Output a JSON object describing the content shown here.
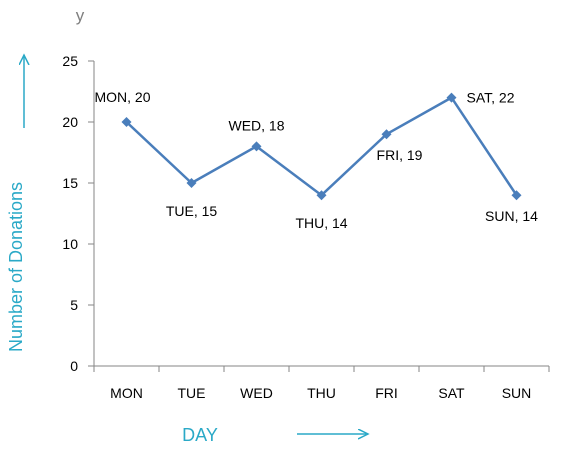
{
  "chart_data": {
    "type": "line",
    "categories": [
      "MON",
      "TUE",
      "WED",
      "THU",
      "FRI",
      "SAT",
      "SUN"
    ],
    "series": [
      {
        "values": [
          20,
          15,
          18,
          14,
          19,
          22,
          14
        ]
      }
    ],
    "data_labels": [
      "MON, 20",
      "TUE, 15",
      "WED, 18",
      "THU, 14",
      "FRI, 19",
      "SAT, 22",
      "SUN, 14"
    ],
    "y_ticks": [
      "0",
      "5",
      "10",
      "15",
      "20",
      "25"
    ],
    "xlabel": "DAY",
    "ylabel": "Number of Donations",
    "corner_label": "y",
    "ylim": [
      0,
      25
    ],
    "grid": false,
    "legend": "none",
    "marker": "diamond",
    "colors": {
      "series": "#4a7ebb",
      "axis_title": "#2aa9c7",
      "axis_line": "#868686",
      "corner": "#7f7f7f"
    }
  }
}
